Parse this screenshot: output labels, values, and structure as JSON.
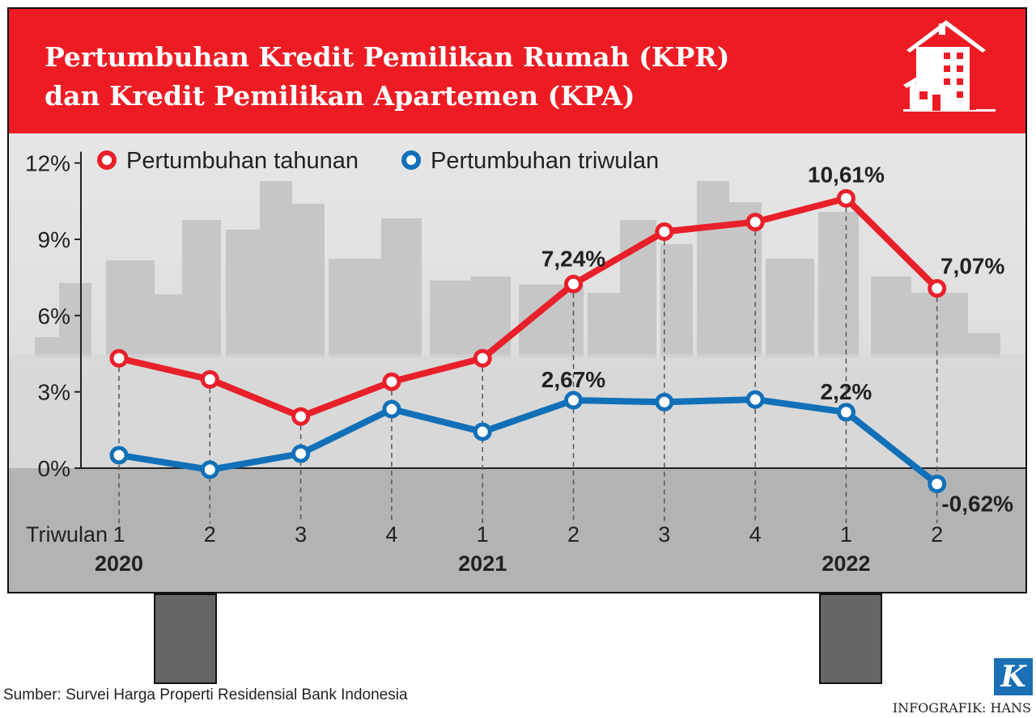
{
  "header": {
    "title_line1": "Pertumbuhan Kredit Pemilikan Rumah (KPR)",
    "title_line2": "dan Kredit Pemilikan Apartemen (KPA)",
    "icon": "house-apartment-icon",
    "bg_color": "#ed1c24"
  },
  "chart_data": {
    "type": "line",
    "ylim": [
      -1.5,
      12
    ],
    "yticks": [
      0,
      3,
      6,
      9,
      12
    ],
    "ytick_labels": [
      "0%",
      "3%",
      "6%",
      "9%",
      "12%"
    ],
    "xlabel": "Triwulan",
    "categories": [
      "1",
      "2",
      "3",
      "4",
      "1",
      "2",
      "3",
      "4",
      "1",
      "2"
    ],
    "years": [
      {
        "label": "2020",
        "index": 0
      },
      {
        "label": "2021",
        "index": 4
      },
      {
        "label": "2022",
        "index": 8
      }
    ],
    "legend_position": "top-left",
    "series": [
      {
        "name": "Pertumbuhan tahunan",
        "color": "#e8202a",
        "values": [
          4.32,
          3.49,
          2.03,
          3.4,
          4.32,
          7.24,
          9.3,
          9.68,
          10.61,
          7.07
        ],
        "labels": {
          "5": "7,24%",
          "8": "10,61%",
          "9": "7,07%"
        }
      },
      {
        "name": "Pertumbuhan triwulan",
        "color": "#1170b8",
        "values": [
          0.51,
          -0.06,
          0.57,
          2.32,
          1.43,
          2.67,
          2.6,
          2.7,
          2.2,
          -0.62
        ],
        "labels": {
          "5": "2,67%",
          "8": "2,2%",
          "9": "-0,62%"
        }
      }
    ]
  },
  "footer": {
    "source": "Sumber: Survei Harga Properti Residensial Bank Indonesia",
    "credit": "INFOGRAFIK: HANS",
    "logo": "K"
  }
}
